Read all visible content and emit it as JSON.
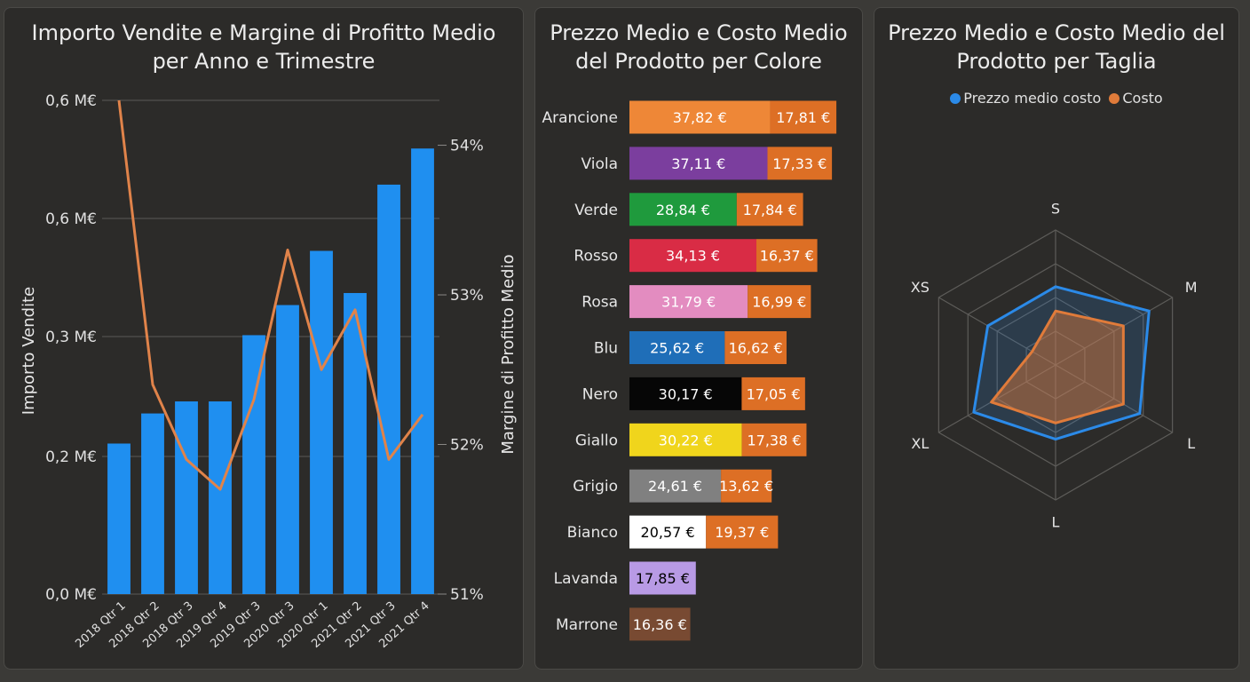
{
  "chart_data": [
    {
      "type": "bar",
      "title": "Importo Vendite e Margine di Profitto Medio per Anno e Trimestre",
      "xlabel": "",
      "ylabel": "Importo Vendite",
      "y2label": "Margine di Profitto Medio",
      "categories": [
        "2018 Qtr 1",
        "2018 Qtr 2",
        "2018 Qtr 3",
        "2019 Qtr 4",
        "2019 Qtr 3",
        "2020 Qtr 3",
        "2020 Qtr 1",
        "2021 Qtr 2",
        "2021 Qtr 3",
        "2021 Qtr 4"
      ],
      "yticks": [
        "0,0 M€",
        "0,2 M€",
        "0,3 M€",
        "0,6 M€",
        "0,6 M€"
      ],
      "y2ticks": [
        "51%",
        "52%",
        "53%",
        "54%"
      ],
      "ylim": [
        0,
        0.82
      ],
      "y2lim": [
        51,
        54.3
      ],
      "bar_color": "#1f8ff0",
      "line_color": "#e0834a",
      "series": [
        {
          "type": "bar",
          "values": [
            0.25,
            0.3,
            0.32,
            0.32,
            0.43,
            0.48,
            0.57,
            0.5,
            0.68,
            0.74
          ]
        },
        {
          "type": "line",
          "axis": "right",
          "values": [
            54.3,
            52.4,
            51.9,
            51.7,
            52.3,
            53.3,
            52.5,
            52.9,
            51.9,
            52.2
          ]
        }
      ]
    },
    {
      "type": "bar",
      "orientation": "horizontal",
      "stacked": true,
      "title": "Prezzo Medio e Costo Medio del Prodotto per Colore",
      "cost_color": "#dd6f25",
      "categories": [
        "Arancione",
        "Viola",
        "Verde",
        "Rosso",
        "Rosa",
        "Blu",
        "Nero",
        "Giallo",
        "Grigio",
        "Bianco",
        "Lavanda",
        "Marrone"
      ],
      "colors": [
        "#ee8737",
        "#7b3e9e",
        "#1f9a3d",
        "#d92c45",
        "#e38cc0",
        "#1f6eb8",
        "#060606",
        "#f0d51c",
        "#808080",
        "#ffffff",
        "#b89ae5",
        "#784a32"
      ],
      "price_text_colors": [
        "#ffffff",
        "#ffffff",
        "#ffffff",
        "#ffffff",
        "#ffffff",
        "#ffffff",
        "#ffffff",
        "#ffffff",
        "#ffffff",
        "#000000",
        "#000000",
        "#ffffff"
      ],
      "series": [
        {
          "values": [
            37.82,
            37.11,
            28.84,
            34.13,
            31.79,
            25.62,
            30.17,
            30.22,
            24.61,
            20.57,
            17.85,
            16.36
          ],
          "labels": [
            "37,82 €",
            "37,11 €",
            "28,84 €",
            "34,13 €",
            "31,79 €",
            "25,62 €",
            "30,17 €",
            "30,22 €",
            "24,61 €",
            "20,57 €",
            "17,85 €",
            "16,36 €"
          ]
        },
        {
          "values": [
            17.81,
            17.33,
            17.84,
            16.37,
            16.99,
            16.62,
            17.05,
            17.38,
            13.62,
            19.37,
            null,
            null
          ],
          "labels": [
            "17,81 €",
            "17,33 €",
            "17,84 €",
            "16,37 €",
            "16,99 €",
            "16,62 €",
            "17,05 €",
            "17,38 €",
            "13,62 €",
            "19,37 €",
            "",
            ""
          ]
        }
      ]
    },
    {
      "type": "radar",
      "title": "Prezzo Medio e Costo Medio del Prodotto per Taglia",
      "categories": [
        "S",
        "M",
        "L",
        "L",
        "XL",
        "XS"
      ],
      "rings": 4,
      "series": [
        {
          "name": "Prezzo medio costo",
          "color": "#2b8ae8",
          "values": [
            0.58,
            0.8,
            0.72,
            0.55,
            0.7,
            0.58
          ]
        },
        {
          "name": "Costo",
          "color": "#e07b3a",
          "values": [
            0.4,
            0.58,
            0.58,
            0.43,
            0.55,
            0.2
          ]
        }
      ]
    }
  ]
}
